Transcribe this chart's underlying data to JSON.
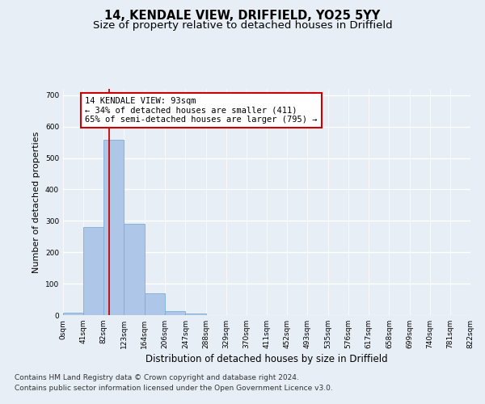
{
  "title": "14, KENDALE VIEW, DRIFFIELD, YO25 5YY",
  "subtitle": "Size of property relative to detached houses in Driffield",
  "xlabel": "Distribution of detached houses by size in Driffield",
  "ylabel": "Number of detached properties",
  "footnote1": "Contains HM Land Registry data © Crown copyright and database right 2024.",
  "footnote2": "Contains public sector information licensed under the Open Government Licence v3.0.",
  "bin_edges": [
    0,
    41,
    82,
    123,
    164,
    206,
    247,
    288,
    329,
    370,
    411,
    452,
    493,
    535,
    576,
    617,
    658,
    699,
    740,
    781,
    822
  ],
  "bar_heights": [
    7,
    280,
    557,
    290,
    70,
    14,
    6,
    0,
    0,
    0,
    0,
    0,
    0,
    0,
    0,
    0,
    0,
    0,
    0,
    0
  ],
  "bar_color": "#aec6e8",
  "bar_edge_color": "#7bafd4",
  "property_size": 93,
  "vline_color": "#cc0000",
  "annotation_line1": "14 KENDALE VIEW: 93sqm",
  "annotation_line2": "← 34% of detached houses are smaller (411)",
  "annotation_line3": "65% of semi-detached houses are larger (795) →",
  "annotation_box_color": "#ffffff",
  "annotation_box_edge": "#cc0000",
  "ylim": [
    0,
    720
  ],
  "yticks": [
    0,
    100,
    200,
    300,
    400,
    500,
    600,
    700
  ],
  "bg_color": "#e8eef5",
  "plot_bg_color": "#e8eef5",
  "grid_color": "#ffffff",
  "title_fontsize": 10.5,
  "subtitle_fontsize": 9.5,
  "xlabel_fontsize": 8.5,
  "ylabel_fontsize": 8,
  "tick_fontsize": 6.5,
  "annotation_fontsize": 7.5,
  "footnote_fontsize": 6.5
}
